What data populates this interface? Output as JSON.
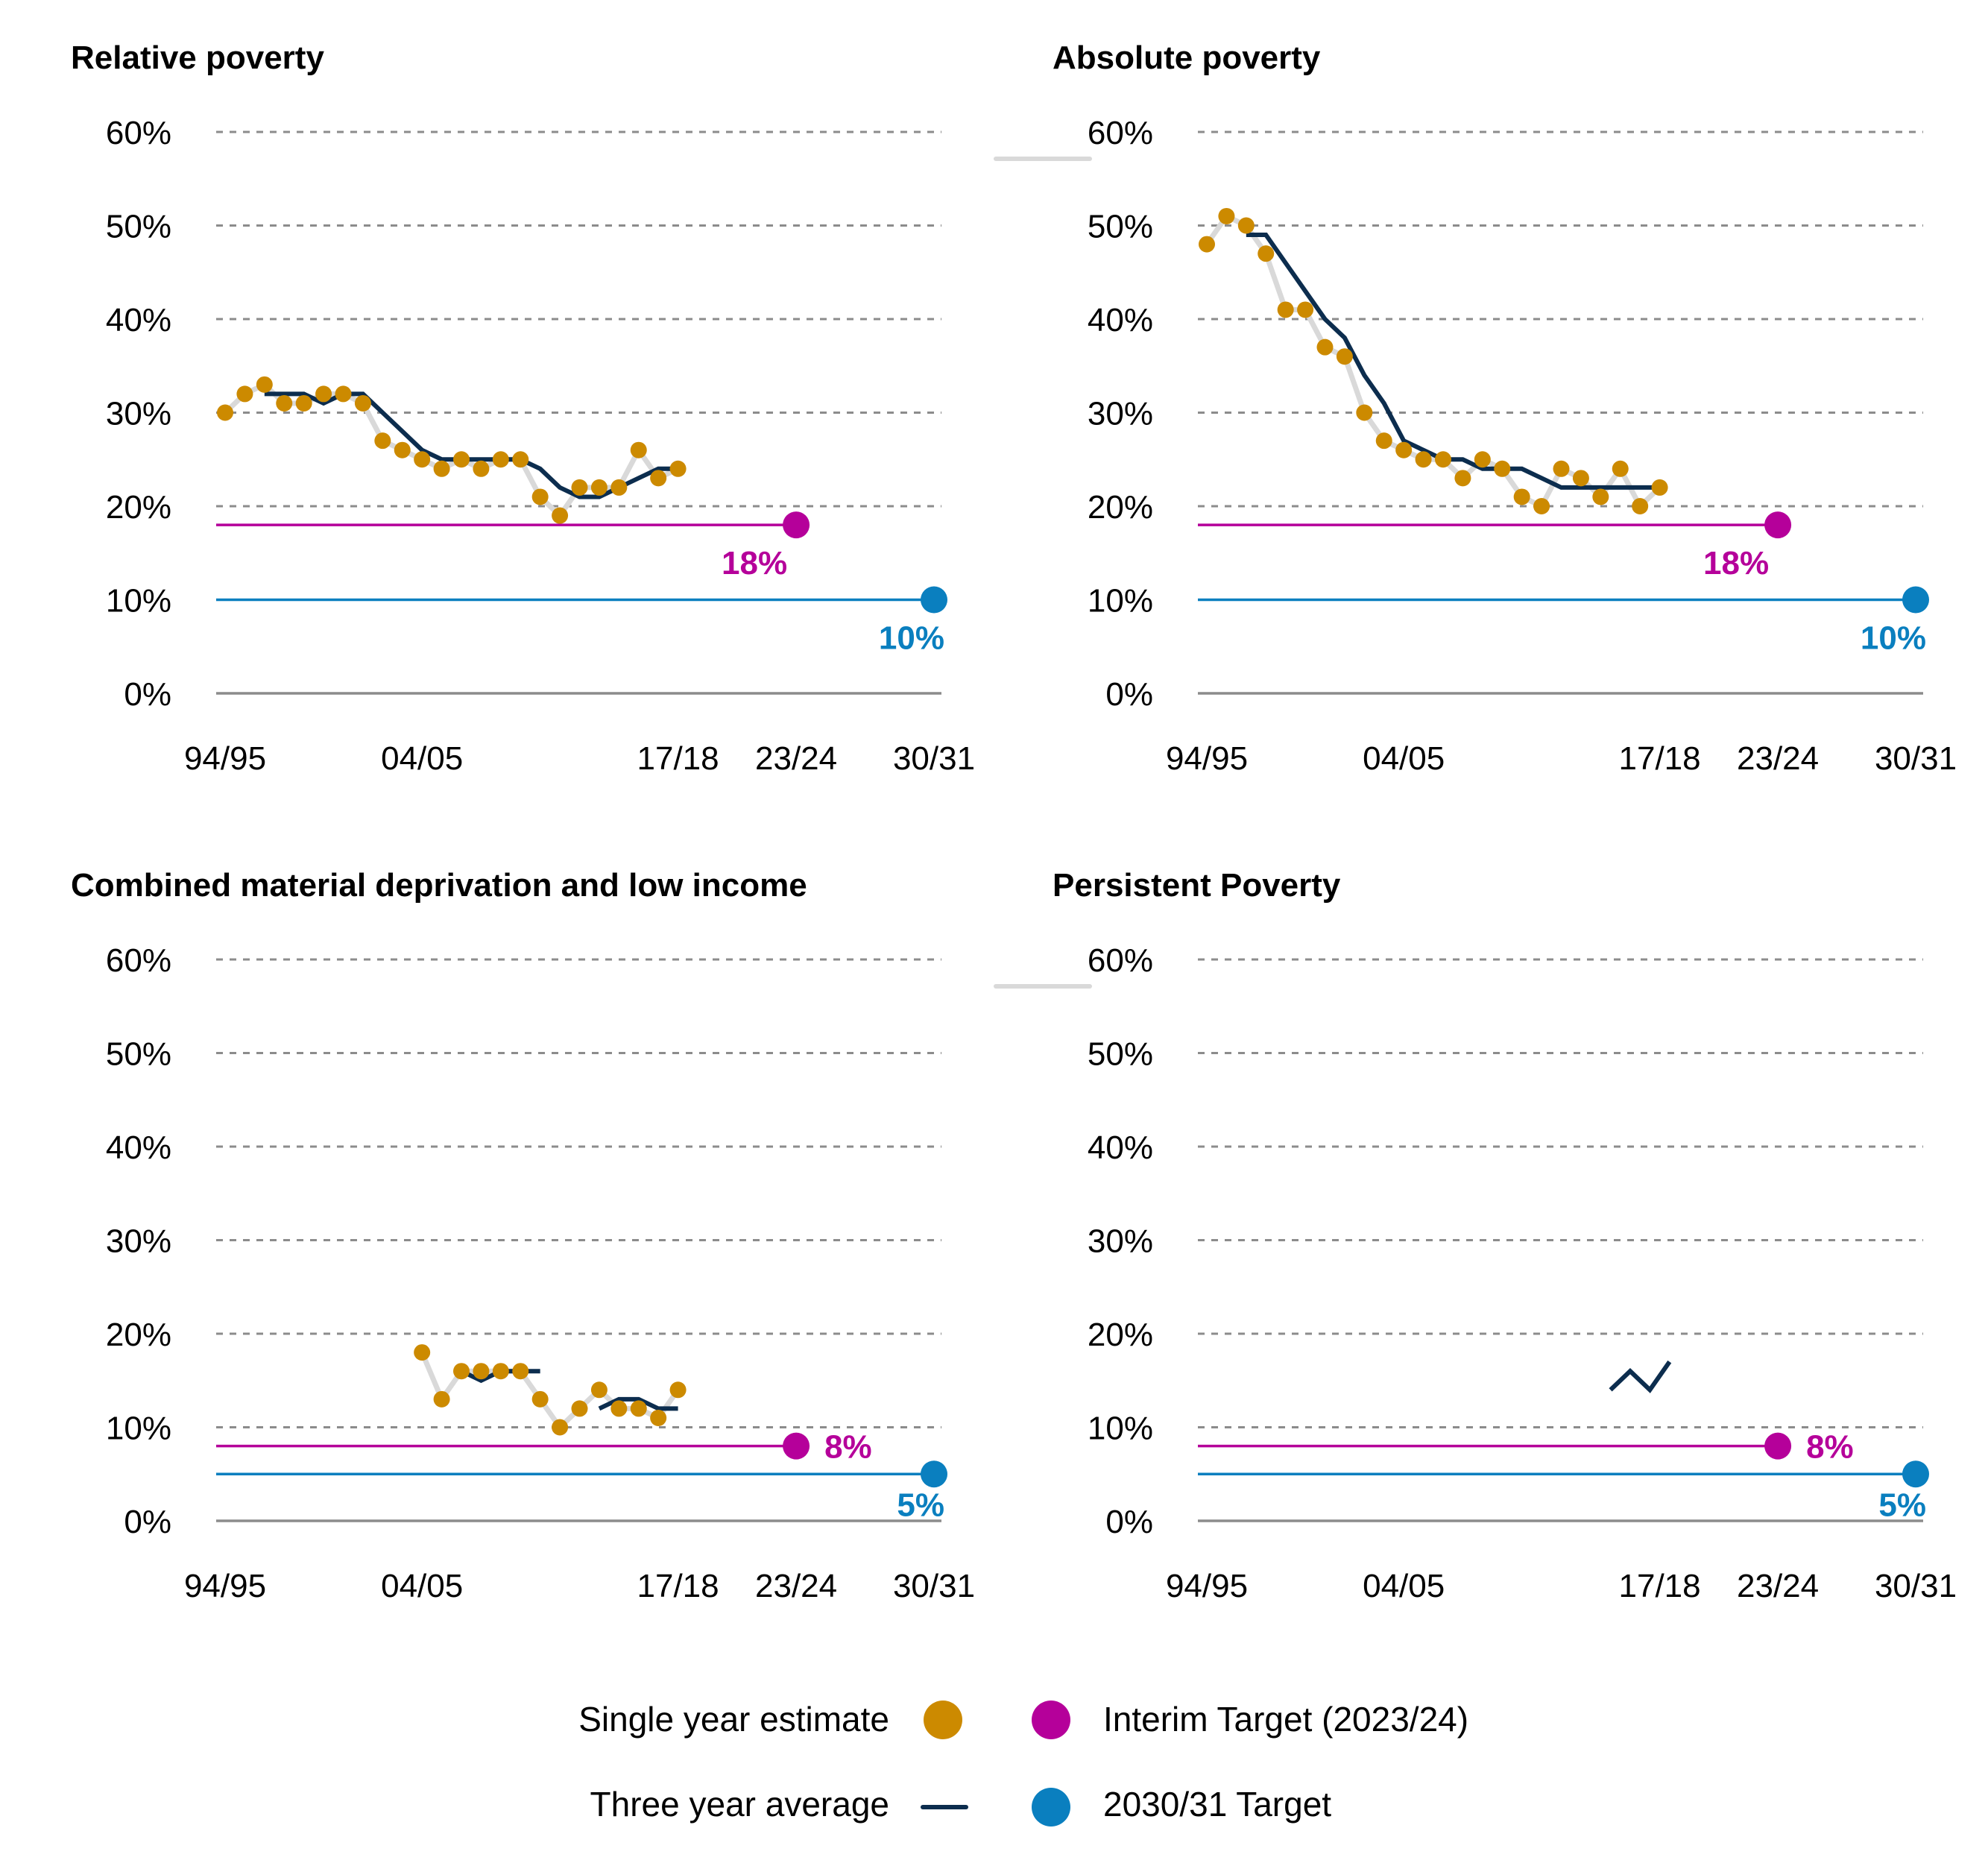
{
  "colors": {
    "single": "#cc8a00",
    "avg": "#0c2d4e",
    "interim": "#b5009a",
    "target": "#0a7fbf",
    "connector": "#d9d9d9",
    "grid": "#8c8c8c"
  },
  "legend": {
    "single": "Single year estimate",
    "avg": "Three year average",
    "interim": "Interim Target (2023/24)",
    "target": "2030/31 Target"
  },
  "chart_data": [
    {
      "type": "line",
      "title": "Relative poverty",
      "ylim": [
        0,
        60
      ],
      "yticks": [
        "0%",
        "10%",
        "20%",
        "30%",
        "40%",
        "50%",
        "60%"
      ],
      "xticks": [
        {
          "x": 0,
          "label": "94/95"
        },
        {
          "x": 10,
          "label": "04/05"
        },
        {
          "x": 23,
          "label": "17/18"
        },
        {
          "x": 29,
          "label": "23/24"
        },
        {
          "x": 36,
          "label": "30/31"
        }
      ],
      "single_year": {
        "x": [
          0,
          1,
          2,
          3,
          4,
          5,
          6,
          7,
          8,
          9,
          10,
          11,
          12,
          13,
          14,
          15,
          16,
          17,
          18,
          19,
          20,
          21,
          22,
          23
        ],
        "y": [
          30,
          32,
          33,
          31,
          31,
          32,
          32,
          31,
          27,
          26,
          25,
          24,
          25,
          24,
          25,
          25,
          21,
          19,
          22,
          22,
          22,
          26,
          23,
          24
        ]
      },
      "three_year_avg": {
        "x": [
          2,
          3,
          4,
          5,
          6,
          7,
          8,
          9,
          10,
          11,
          12,
          13,
          14,
          15,
          16,
          17,
          18,
          19,
          20,
          21,
          22,
          23
        ],
        "y": [
          32,
          32,
          32,
          31,
          32,
          32,
          30,
          28,
          26,
          25,
          25,
          25,
          25,
          25,
          24,
          22,
          21,
          21,
          22,
          23,
          24,
          24
        ]
      },
      "interim_target": {
        "value": 18,
        "label": "18%"
      },
      "final_target": {
        "value": 10,
        "label": "10%"
      }
    },
    {
      "type": "line",
      "title": "Absolute poverty",
      "ylim": [
        0,
        60
      ],
      "yticks": [
        "0%",
        "10%",
        "20%",
        "30%",
        "40%",
        "50%",
        "60%"
      ],
      "xticks": [
        {
          "x": 0,
          "label": "94/95"
        },
        {
          "x": 10,
          "label": "04/05"
        },
        {
          "x": 23,
          "label": "17/18"
        },
        {
          "x": 29,
          "label": "23/24"
        },
        {
          "x": 36,
          "label": "30/31"
        }
      ],
      "single_year": {
        "x": [
          0,
          1,
          2,
          3,
          4,
          5,
          6,
          7,
          8,
          9,
          10,
          11,
          12,
          13,
          14,
          15,
          16,
          17,
          18,
          19,
          20,
          21,
          22,
          23
        ],
        "y": [
          48,
          51,
          50,
          47,
          41,
          41,
          37,
          36,
          30,
          27,
          26,
          25,
          25,
          23,
          25,
          24,
          21,
          20,
          24,
          23,
          21,
          24,
          20,
          22
        ]
      },
      "three_year_avg": {
        "x": [
          2,
          3,
          4,
          5,
          6,
          7,
          8,
          9,
          10,
          11,
          12,
          13,
          14,
          15,
          16,
          17,
          18,
          19,
          20,
          21,
          22,
          23
        ],
        "y": [
          49,
          49,
          46,
          43,
          40,
          38,
          34,
          31,
          27,
          26,
          25,
          25,
          24,
          24,
          24,
          23,
          22,
          22,
          22,
          22,
          22,
          22
        ]
      },
      "interim_target": {
        "value": 18,
        "label": "18%"
      },
      "final_target": {
        "value": 10,
        "label": "10%"
      }
    },
    {
      "type": "line",
      "title": "Combined material deprivation and low income",
      "ylim": [
        0,
        60
      ],
      "yticks": [
        "0%",
        "10%",
        "20%",
        "30%",
        "40%",
        "50%",
        "60%"
      ],
      "xticks": [
        {
          "x": 0,
          "label": "94/95"
        },
        {
          "x": 10,
          "label": "04/05"
        },
        {
          "x": 23,
          "label": "17/18"
        },
        {
          "x": 29,
          "label": "23/24"
        },
        {
          "x": 36,
          "label": "30/31"
        }
      ],
      "single_year": {
        "x": [
          10,
          11,
          12,
          13,
          14,
          15,
          16,
          17,
          18,
          19,
          20,
          21,
          22,
          23
        ],
        "y": [
          18,
          13,
          16,
          16,
          16,
          16,
          13,
          10,
          12,
          14,
          12,
          12,
          11,
          14
        ]
      },
      "three_year_avg": {
        "x": [
          12,
          13,
          14,
          15,
          16
        ],
        "y": [
          16,
          15,
          16,
          16,
          16
        ],
        "x2": [
          19,
          20,
          21,
          22,
          23
        ],
        "y2": [
          12,
          13,
          13,
          12,
          12
        ]
      },
      "interim_target": {
        "value": 8,
        "label": "8%"
      },
      "final_target": {
        "value": 5,
        "label": "5%"
      }
    },
    {
      "type": "line",
      "title": "Persistent Poverty",
      "ylim": [
        0,
        60
      ],
      "yticks": [
        "0%",
        "10%",
        "20%",
        "30%",
        "40%",
        "50%",
        "60%"
      ],
      "xticks": [
        {
          "x": 0,
          "label": "94/95"
        },
        {
          "x": 10,
          "label": "04/05"
        },
        {
          "x": 23,
          "label": "17/18"
        },
        {
          "x": 29,
          "label": "23/24"
        },
        {
          "x": 36,
          "label": "30/31"
        }
      ],
      "single_year": {
        "x": [],
        "y": []
      },
      "three_year_avg": {
        "x": [
          20.5,
          21.5,
          22.5,
          23.5
        ],
        "y": [
          14,
          16,
          14,
          17
        ]
      },
      "interim_target": {
        "value": 8,
        "label": "8%"
      },
      "final_target": {
        "value": 5,
        "label": "5%"
      }
    }
  ]
}
